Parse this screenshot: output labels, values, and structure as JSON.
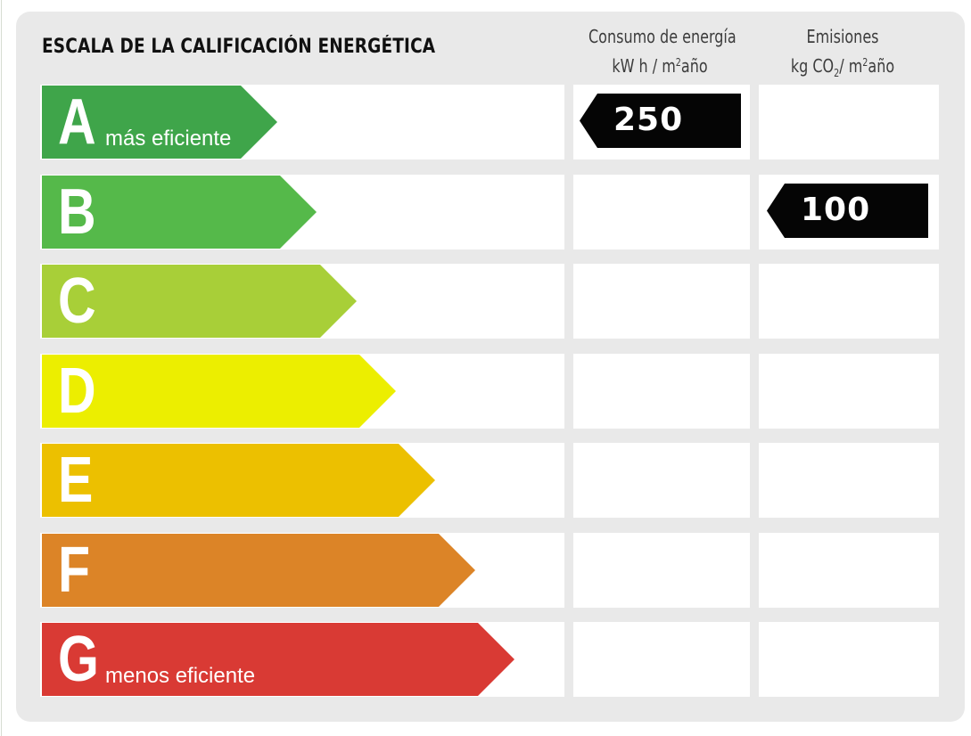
{
  "title": "ESCALA DE LA CALIFICACIÓN ENERGÉTICA",
  "columns": {
    "consumo": {
      "line1": "Consumo de energía",
      "line2_pre": "kW h / m",
      "line2_sup": "2",
      "line2_post": "año"
    },
    "emisiones": {
      "line1": "Emisiones",
      "line2_pre": "kg CO",
      "line2_sub": "2",
      "line2_mid": "/ m",
      "line2_sup": "2",
      "line2_post": "año"
    }
  },
  "bands": [
    {
      "letter": "A",
      "note": "más eficiente",
      "color": "#3fa54a"
    },
    {
      "letter": "B",
      "note": "",
      "color": "#55b94a"
    },
    {
      "letter": "C",
      "note": "",
      "color": "#a8cf38"
    },
    {
      "letter": "D",
      "note": "",
      "color": "#ecee00"
    },
    {
      "letter": "E",
      "note": "",
      "color": "#ecc000"
    },
    {
      "letter": "F",
      "note": "",
      "color": "#dc8427"
    },
    {
      "letter": "G",
      "note": "menos eficiente",
      "color": "#d93a34"
    }
  ],
  "ratings": {
    "consumo": {
      "value": "250",
      "band": "A"
    },
    "emisiones": {
      "value": "100",
      "band": "B"
    }
  }
}
